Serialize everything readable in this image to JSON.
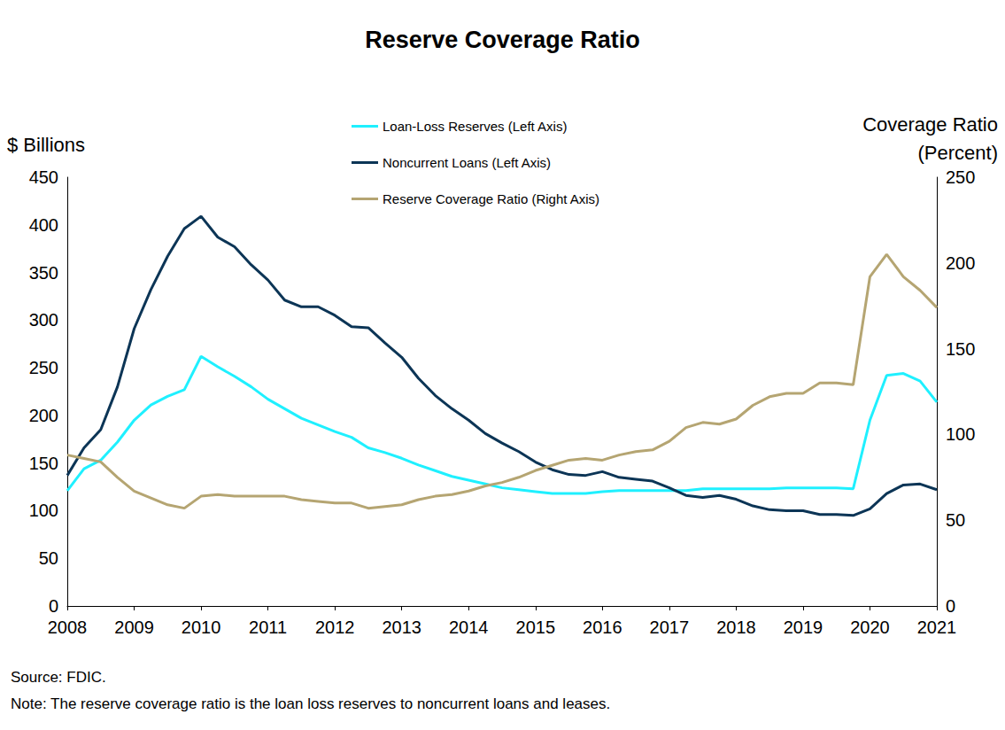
{
  "chart_data": {
    "type": "line",
    "title": "Reserve Coverage Ratio",
    "y_label": "$ Billions",
    "y2_label": "Coverage Ratio\n(Percent)",
    "source": "Source: FDIC.",
    "note": "Note: The reserve coverage ratio is the loan loss reserves to noncurrent loans and leases.",
    "categories": [
      "2008",
      null,
      null,
      null,
      "2009",
      null,
      null,
      null,
      "2010",
      null,
      null,
      null,
      "2011",
      null,
      null,
      null,
      "2012",
      null,
      null,
      null,
      "2013",
      null,
      null,
      null,
      "2014",
      null,
      null,
      null,
      "2015",
      null,
      null,
      null,
      "2016",
      null,
      null,
      null,
      "2017",
      null,
      null,
      null,
      "2018",
      null,
      null,
      null,
      "2019",
      null,
      null,
      null,
      "2020",
      null,
      null,
      null,
      "2021"
    ],
    "ylim": [
      0,
      450
    ],
    "yticks": [
      0,
      50,
      100,
      150,
      200,
      250,
      300,
      350,
      400,
      450
    ],
    "y2lim": [
      0,
      250
    ],
    "y2ticks": [
      0,
      50,
      100,
      150,
      200,
      250
    ],
    "grid": false,
    "legend": "top",
    "series": [
      {
        "name": "Loan-Loss Reserves (Left Axis)",
        "color": "#1ff0ff",
        "axis": "y",
        "values": [
          121,
          144,
          153,
          172,
          195,
          211,
          220,
          227,
          262,
          251,
          241,
          230,
          217,
          207,
          197,
          190,
          183,
          177,
          166,
          161,
          155,
          148,
          142,
          136,
          132,
          128,
          124,
          122,
          120,
          118,
          118,
          118,
          120,
          121,
          121,
          121,
          121,
          121,
          123,
          123,
          123,
          123,
          123,
          124,
          124,
          124,
          124,
          123,
          195,
          242,
          244,
          236,
          214
        ]
      },
      {
        "name": "Noncurrent Loans (Left Axis)",
        "color": "#0c3556",
        "axis": "y",
        "values": [
          137,
          166,
          185,
          230,
          291,
          332,
          367,
          396,
          409,
          387,
          377,
          358,
          342,
          321,
          314,
          314,
          305,
          293,
          292,
          276,
          261,
          239,
          221,
          207,
          195,
          181,
          171,
          162,
          151,
          143,
          138,
          137,
          141,
          135,
          133,
          131,
          124,
          116,
          114,
          116,
          112,
          105,
          101,
          100,
          100,
          96,
          96,
          95,
          102,
          118,
          127,
          128,
          122
        ]
      },
      {
        "name": "Reserve Coverage Ratio (Right Axis)",
        "color": "#b5a572",
        "axis": "y2",
        "values": [
          88,
          86,
          84,
          75,
          67,
          63,
          59,
          57,
          64,
          65,
          64,
          64,
          64,
          64,
          62,
          61,
          60,
          60,
          57,
          58,
          59,
          62,
          64,
          65,
          67,
          70,
          72,
          75,
          79,
          82,
          85,
          86,
          85,
          88,
          90,
          91,
          96,
          104,
          107,
          106,
          109,
          117,
          122,
          124,
          124,
          130,
          130,
          129,
          192,
          205,
          192,
          184,
          174
        ]
      }
    ]
  }
}
